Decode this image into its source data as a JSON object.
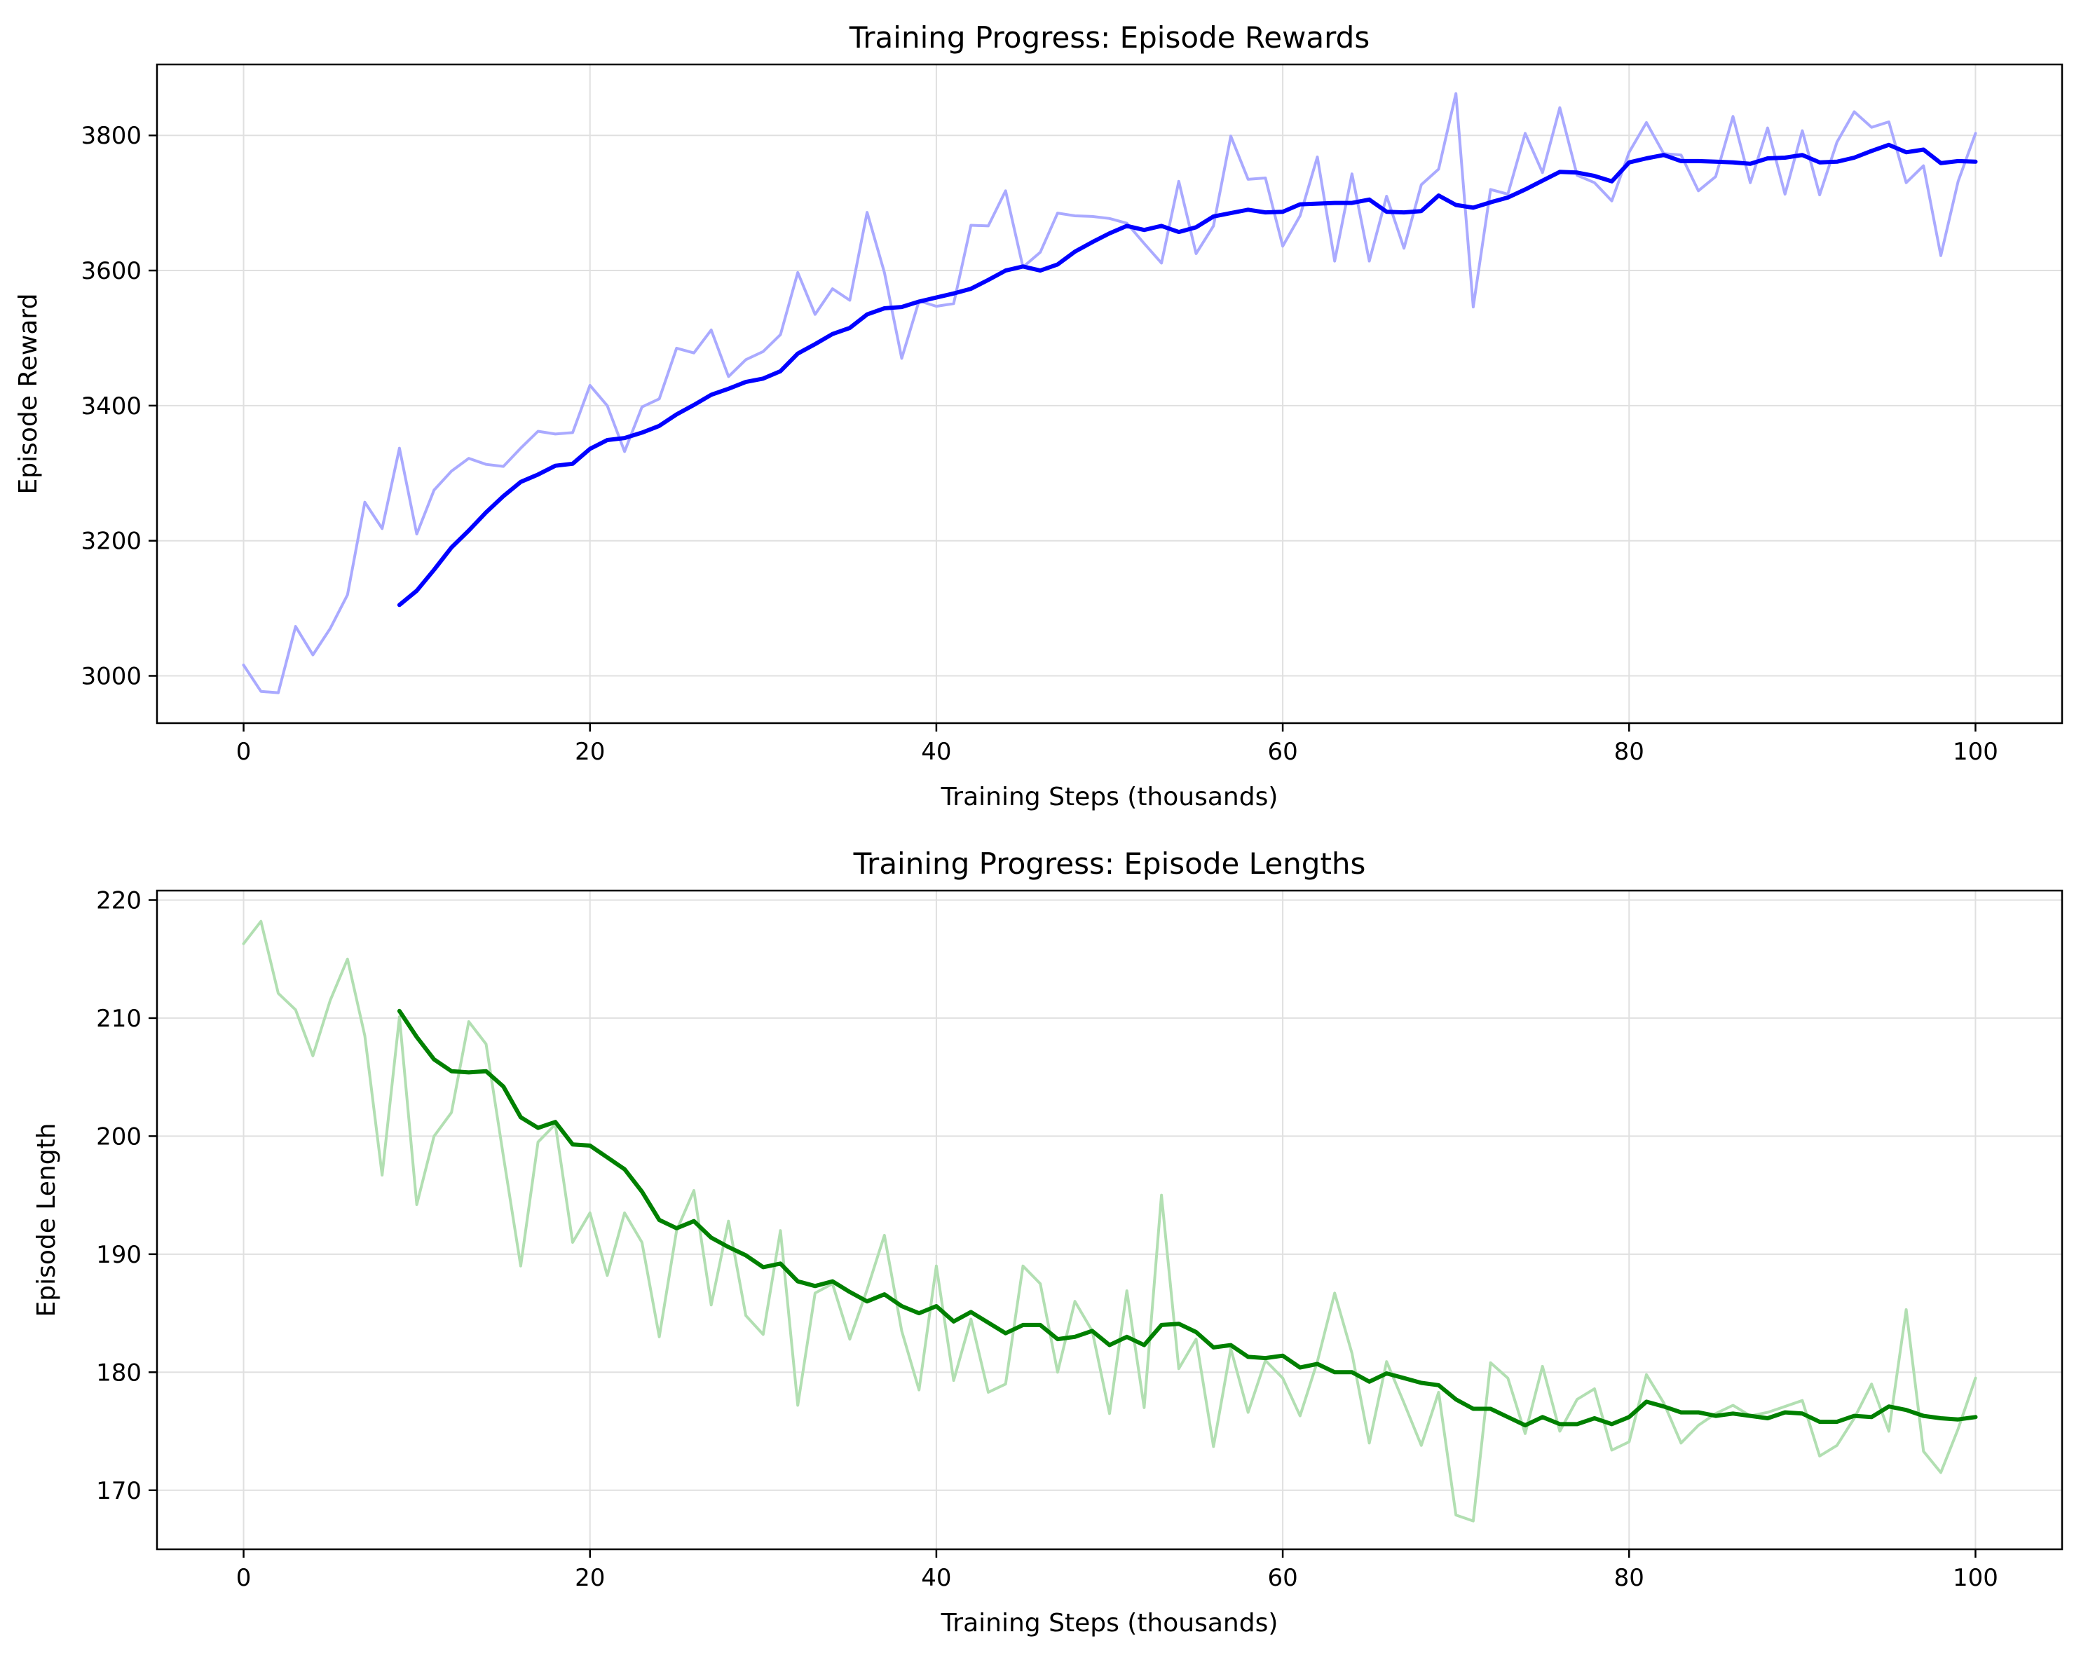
{
  "chart_data": [
    {
      "type": "line",
      "title": "Training Progress: Episode Rewards",
      "xlabel": "Training Steps (thousands)",
      "ylabel": "Episode Reward",
      "xlim": [
        -5,
        105
      ],
      "ylim": [
        2930,
        3905
      ],
      "xticks": [
        0,
        20,
        40,
        60,
        80,
        100
      ],
      "yticks": [
        3000,
        3200,
        3400,
        3600,
        3800
      ],
      "grid": true,
      "colors": {
        "raw": "#aaaaff",
        "smoothed": "#0000ff"
      },
      "series": [
        {
          "x": [
            0,
            1,
            2,
            3,
            4,
            5,
            6,
            7,
            8,
            9,
            10,
            11,
            12,
            13,
            14,
            15,
            16,
            17,
            18,
            19,
            20,
            21,
            22,
            23,
            24,
            25,
            26,
            27,
            28,
            29,
            30,
            31,
            32,
            33,
            34,
            35,
            36,
            37,
            38,
            39,
            40,
            41,
            42,
            43,
            44,
            45,
            46,
            47,
            48,
            49,
            50,
            51,
            52,
            53,
            54,
            55,
            56,
            57,
            58,
            59,
            60,
            61,
            62,
            63,
            64,
            65,
            66,
            67,
            68,
            69,
            70,
            71,
            72,
            73,
            74,
            75,
            76,
            77,
            78,
            79,
            80,
            81,
            82,
            83,
            84,
            85,
            86,
            87,
            88,
            89,
            90,
            91,
            92,
            93,
            94,
            95,
            96,
            97,
            98,
            99,
            100
          ],
          "values": [
            3016,
            2977,
            2975,
            3073,
            3031,
            3070,
            3120,
            3257,
            3218,
            3337,
            3210,
            3275,
            3303,
            3322,
            3313,
            3310,
            3337,
            3362,
            3358,
            3360,
            3430,
            3400,
            3332,
            3398,
            3410,
            3485,
            3478,
            3512,
            3443,
            3468,
            3480,
            3505,
            3597,
            3535,
            3573,
            3556,
            3686,
            3597,
            3470,
            3555,
            3547,
            3551,
            3667,
            3666,
            3718,
            3605,
            3627,
            3685,
            3681,
            3680,
            3677,
            3670,
            3640,
            3611,
            3732,
            3625,
            3666,
            3799,
            3735,
            3737,
            3636,
            3681,
            3768,
            3614,
            3743,
            3614,
            3710,
            3633,
            3727,
            3750,
            3862,
            3546,
            3720,
            3713,
            3803,
            3745,
            3841,
            3741,
            3730,
            3703,
            3775,
            3819,
            3773,
            3771,
            3718,
            3739,
            3828,
            3730,
            3811,
            3713,
            3807,
            3712,
            3790,
            3835,
            3812,
            3820,
            3730,
            3755,
            3622,
            3732,
            3803
          ]
        },
        {
          "x": [
            9,
            10,
            11,
            12,
            13,
            14,
            15,
            16,
            17,
            18,
            19,
            20,
            21,
            22,
            23,
            24,
            25,
            26,
            27,
            28,
            29,
            30,
            31,
            32,
            33,
            34,
            35,
            36,
            37,
            38,
            39,
            40,
            41,
            42,
            43,
            44,
            45,
            46,
            47,
            48,
            49,
            50,
            51,
            52,
            53,
            54,
            55,
            56,
            57,
            58,
            59,
            60,
            61,
            62,
            63,
            64,
            65,
            66,
            67,
            68,
            69,
            70,
            71,
            72,
            73,
            74,
            75,
            76,
            77,
            78,
            79,
            80,
            81,
            82,
            83,
            84,
            85,
            86,
            87,
            88,
            89,
            90,
            91,
            92,
            93,
            94,
            95,
            96,
            97,
            98,
            99,
            100
          ],
          "values": [
            3105,
            3126,
            3157,
            3190,
            3215,
            3242,
            3266,
            3287,
            3298,
            3311,
            3314,
            3336,
            3349,
            3352,
            3360,
            3370,
            3387,
            3401,
            3416,
            3425,
            3435,
            3440,
            3451,
            3477,
            3491,
            3506,
            3515,
            3535,
            3544,
            3546,
            3554,
            3560,
            3566,
            3573,
            3586,
            3600,
            3606,
            3600,
            3609,
            3628,
            3642,
            3655,
            3666,
            3660,
            3666,
            3657,
            3664,
            3680,
            3685,
            3690,
            3686,
            3687,
            3698,
            3699,
            3700,
            3700,
            3705,
            3687,
            3686,
            3688,
            3711,
            3697,
            3693,
            3701,
            3708,
            3720,
            3733,
            3746,
            3745,
            3740,
            3732,
            3760,
            3766,
            3771,
            3762,
            3762,
            3761,
            3760,
            3758,
            3766,
            3767,
            3771,
            3760,
            3761,
            3767,
            3777,
            3786,
            3775,
            3779,
            3759,
            3762,
            3761
          ]
        }
      ]
    },
    {
      "type": "line",
      "title": "Training Progress: Episode Lengths",
      "xlabel": "Training Steps (thousands)",
      "ylabel": "Episode Length",
      "xlim": [
        -5,
        105
      ],
      "ylim": [
        165,
        220.8
      ],
      "xticks": [
        0,
        20,
        40,
        60,
        80,
        100
      ],
      "yticks": [
        170,
        180,
        190,
        200,
        210,
        220
      ],
      "grid": true,
      "colors": {
        "raw": "#b2dfb2",
        "smoothed": "#008000"
      },
      "series": [
        {
          "x": [
            0,
            1,
            2,
            3,
            4,
            5,
            6,
            7,
            8,
            9,
            10,
            11,
            12,
            13,
            14,
            15,
            16,
            17,
            18,
            19,
            20,
            21,
            22,
            23,
            24,
            25,
            26,
            27,
            28,
            29,
            30,
            31,
            32,
            33,
            34,
            35,
            36,
            37,
            38,
            39,
            40,
            41,
            42,
            43,
            44,
            45,
            46,
            47,
            48,
            49,
            50,
            51,
            52,
            53,
            54,
            55,
            56,
            57,
            58,
            59,
            60,
            61,
            62,
            63,
            64,
            65,
            66,
            67,
            68,
            69,
            70,
            71,
            72,
            73,
            74,
            75,
            76,
            77,
            78,
            79,
            80,
            81,
            82,
            83,
            84,
            85,
            86,
            87,
            88,
            89,
            90,
            91,
            92,
            93,
            94,
            95,
            96,
            97,
            98,
            99,
            100
          ],
          "values": [
            216.3,
            218.2,
            212.1,
            210.7,
            206.8,
            211.5,
            215.0,
            208.5,
            196.7,
            210.1,
            194.2,
            200.0,
            202.0,
            209.7,
            207.8,
            198.3,
            189.0,
            199.5,
            201.0,
            191.0,
            193.5,
            188.2,
            193.5,
            191.0,
            183.0,
            192.0,
            195.4,
            185.7,
            192.8,
            184.8,
            183.2,
            192.0,
            177.2,
            186.7,
            187.5,
            182.8,
            187.0,
            191.6,
            183.5,
            178.5,
            189.0,
            179.3,
            184.5,
            178.3,
            179.0,
            189.0,
            187.5,
            180.0,
            186.0,
            183.5,
            176.5,
            186.9,
            177.0,
            195.0,
            180.3,
            182.8,
            173.7,
            182.0,
            176.6,
            181.0,
            179.5,
            176.3,
            180.9,
            186.7,
            181.6,
            174.0,
            180.9,
            177.4,
            173.8,
            178.3,
            167.9,
            167.4,
            180.8,
            179.5,
            174.8,
            180.5,
            175.0,
            177.7,
            178.6,
            173.4,
            174.1,
            179.8,
            177.4,
            174.0,
            175.5,
            176.5,
            177.2,
            176.3,
            176.6,
            177.1,
            177.6,
            172.9,
            173.8,
            176.1,
            179.0,
            175.0,
            185.3,
            173.3,
            171.5,
            175.2,
            179.5
          ]
        },
        {
          "x": [
            9,
            10,
            11,
            12,
            13,
            14,
            15,
            16,
            17,
            18,
            19,
            20,
            21,
            22,
            23,
            24,
            25,
            26,
            27,
            28,
            29,
            30,
            31,
            32,
            33,
            34,
            35,
            36,
            37,
            38,
            39,
            40,
            41,
            42,
            43,
            44,
            45,
            46,
            47,
            48,
            49,
            50,
            51,
            52,
            53,
            54,
            55,
            56,
            57,
            58,
            59,
            60,
            61,
            62,
            63,
            64,
            65,
            66,
            67,
            68,
            69,
            70,
            71,
            72,
            73,
            74,
            75,
            76,
            77,
            78,
            79,
            80,
            81,
            82,
            83,
            84,
            85,
            86,
            87,
            88,
            89,
            90,
            91,
            92,
            93,
            94,
            95,
            96,
            97,
            98,
            99,
            100
          ],
          "values": [
            210.6,
            208.4,
            206.5,
            205.5,
            205.4,
            205.5,
            204.2,
            201.6,
            200.7,
            201.2,
            199.3,
            199.2,
            198.2,
            197.2,
            195.3,
            192.9,
            192.2,
            192.8,
            191.4,
            190.6,
            189.9,
            188.9,
            189.2,
            187.7,
            187.3,
            187.7,
            186.8,
            186.0,
            186.6,
            185.6,
            185.0,
            185.6,
            184.3,
            185.1,
            184.2,
            183.3,
            184.0,
            184.0,
            182.8,
            183.0,
            183.5,
            182.3,
            183.0,
            182.3,
            184.0,
            184.1,
            183.4,
            182.1,
            182.3,
            181.3,
            181.2,
            181.4,
            180.4,
            180.7,
            180.0,
            180.0,
            179.2,
            179.9,
            179.5,
            179.1,
            178.9,
            177.7,
            176.9,
            176.9,
            176.2,
            175.5,
            176.2,
            175.6,
            175.6,
            176.1,
            175.6,
            176.2,
            177.5,
            177.1,
            176.6,
            176.6,
            176.3,
            176.5,
            176.3,
            176.1,
            176.6,
            176.5,
            175.8,
            175.8,
            176.3,
            176.2,
            177.1,
            176.8,
            176.3,
            176.1,
            176.0,
            176.2
          ]
        }
      ]
    }
  ]
}
